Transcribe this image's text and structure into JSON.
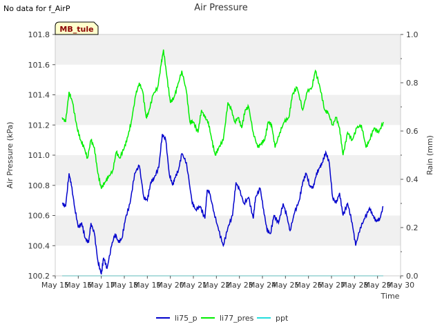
{
  "notice": "No data for f_AirP",
  "station_label": "MB_tule",
  "colors": {
    "li75_p": "#0000cc",
    "li77_pres": "#00ee00",
    "ppt": "#22dddd",
    "band": "#f0f0f0",
    "station_bg": "#ffffcc",
    "station_text": "#8b0000"
  },
  "chart_data": {
    "type": "line",
    "title": "Air Pressure",
    "xlabel": "Time",
    "ylabel": "Air Pressure (kPa)",
    "y2label": "Rain (mm)",
    "xlim": [
      15,
      30
    ],
    "ylim": [
      100.2,
      101.8
    ],
    "y2lim": [
      0.0,
      1.0
    ],
    "x_ticks": [
      15,
      16,
      17,
      18,
      19,
      20,
      21,
      22,
      23,
      24,
      25,
      26,
      27,
      28,
      29,
      30
    ],
    "x_tick_labels": [
      "May 15",
      "May 16",
      "May 17",
      "May 18",
      "May 19",
      "May 20",
      "May 21",
      "May 22",
      "May 23",
      "May 24",
      "May 25",
      "May 26",
      "May 27",
      "May 28",
      "May 29",
      "May 30"
    ],
    "y_ticks": [
      100.2,
      100.4,
      100.6,
      100.8,
      101.0,
      101.2,
      101.4,
      101.6,
      101.8
    ],
    "y_tick_labels": [
      "100.2",
      "100.4",
      "100.6",
      "100.8",
      "101.0",
      "101.2",
      "101.4",
      "101.6",
      "101.8"
    ],
    "y2_ticks": [
      0.0,
      0.2,
      0.4,
      0.6,
      0.8,
      1.0
    ],
    "y2_tick_labels": [
      "0.0",
      "0.2",
      "0.4",
      "0.6",
      "0.8",
      "1.0"
    ],
    "legend_position": "bottom-center",
    "series": [
      {
        "name": "li75_p",
        "axis": "left",
        "x": [
          15.3,
          15.45,
          15.6,
          15.7,
          15.85,
          16.0,
          16.15,
          16.3,
          16.45,
          16.55,
          16.7,
          16.85,
          17.0,
          17.1,
          17.25,
          17.45,
          17.6,
          17.75,
          17.9,
          18.05,
          18.25,
          18.45,
          18.65,
          18.85,
          19.0,
          19.15,
          19.3,
          19.5,
          19.65,
          19.8,
          19.95,
          20.1,
          20.2,
          20.35,
          20.5,
          20.7,
          20.95,
          21.1,
          21.3,
          21.5,
          21.6,
          21.7,
          21.9,
          22.1,
          22.3,
          22.5,
          22.7,
          22.85,
          23.0,
          23.2,
          23.4,
          23.6,
          23.7,
          23.9,
          24.05,
          24.2,
          24.35,
          24.5,
          24.7,
          24.9,
          25.05,
          25.2,
          25.4,
          25.6,
          25.75,
          25.9,
          26.05,
          26.2,
          26.35,
          26.5,
          26.6,
          26.75,
          26.9,
          27.05,
          27.2,
          27.35,
          27.5,
          27.7,
          27.9,
          28.05,
          28.25,
          28.45,
          28.65,
          28.8,
          28.95,
          29.1,
          29.25
        ],
        "values": [
          100.68,
          100.66,
          100.88,
          100.8,
          100.65,
          100.52,
          100.55,
          100.45,
          100.42,
          100.55,
          100.48,
          100.3,
          100.21,
          100.32,
          100.25,
          100.4,
          100.48,
          100.42,
          100.45,
          100.58,
          100.68,
          100.88,
          100.93,
          100.72,
          100.7,
          100.82,
          100.85,
          100.92,
          101.14,
          101.1,
          100.88,
          100.8,
          100.85,
          100.9,
          101.01,
          100.95,
          100.68,
          100.64,
          100.66,
          100.58,
          100.77,
          100.75,
          100.62,
          100.5,
          100.4,
          100.52,
          100.6,
          100.82,
          100.77,
          100.68,
          100.72,
          100.58,
          100.72,
          100.78,
          100.64,
          100.5,
          100.48,
          100.6,
          100.55,
          100.68,
          100.6,
          100.5,
          100.62,
          100.7,
          100.82,
          100.88,
          100.8,
          100.78,
          100.88,
          100.92,
          100.95,
          101.02,
          100.95,
          100.72,
          100.68,
          100.75,
          100.6,
          100.68,
          100.55,
          100.4,
          100.52,
          100.58,
          100.65,
          100.6,
          100.56,
          100.58,
          100.66
        ]
      },
      {
        "name": "li77_pres",
        "axis": "left",
        "x": [
          15.3,
          15.45,
          15.6,
          15.75,
          15.95,
          16.1,
          16.25,
          16.4,
          16.55,
          16.7,
          16.85,
          17.0,
          17.15,
          17.3,
          17.5,
          17.65,
          17.8,
          18.0,
          18.15,
          18.3,
          18.5,
          18.65,
          18.8,
          18.95,
          19.05,
          19.25,
          19.45,
          19.6,
          19.7,
          19.85,
          20.0,
          20.15,
          20.3,
          20.5,
          20.7,
          20.85,
          21.0,
          21.2,
          21.35,
          21.5,
          21.65,
          21.8,
          21.95,
          22.1,
          22.3,
          22.5,
          22.65,
          22.8,
          22.95,
          23.1,
          23.25,
          23.4,
          23.6,
          23.8,
          23.95,
          24.1,
          24.25,
          24.4,
          24.55,
          24.75,
          24.95,
          25.15,
          25.3,
          25.5,
          25.75,
          25.95,
          26.15,
          26.3,
          26.5,
          26.7,
          26.85,
          27.05,
          27.2,
          27.35,
          27.5,
          27.7,
          27.9,
          28.1,
          28.3,
          28.5,
          28.65,
          28.85,
          29.05,
          29.25
        ],
        "values": [
          101.25,
          101.22,
          101.42,
          101.35,
          101.18,
          101.1,
          101.05,
          100.98,
          101.1,
          101.05,
          100.88,
          100.78,
          100.82,
          100.85,
          100.9,
          101.02,
          100.98,
          101.05,
          101.12,
          101.22,
          101.4,
          101.48,
          101.42,
          101.25,
          101.28,
          101.4,
          101.45,
          101.6,
          101.7,
          101.52,
          101.35,
          101.38,
          101.45,
          101.56,
          101.42,
          101.22,
          101.22,
          101.15,
          101.3,
          101.25,
          101.22,
          101.1,
          101.0,
          101.05,
          101.1,
          101.35,
          101.3,
          101.22,
          101.25,
          101.18,
          101.3,
          101.32,
          101.15,
          101.05,
          101.08,
          101.1,
          101.22,
          101.2,
          101.05,
          101.15,
          101.22,
          101.25,
          101.4,
          101.45,
          101.3,
          101.42,
          101.45,
          101.56,
          101.45,
          101.3,
          101.28,
          101.2,
          101.25,
          101.18,
          101.0,
          101.15,
          101.1,
          101.18,
          101.2,
          101.05,
          101.1,
          101.18,
          101.15,
          101.22
        ]
      },
      {
        "name": "ppt",
        "axis": "right",
        "x": [
          15.3,
          29.25
        ],
        "values": [
          0.0,
          0.0
        ]
      }
    ]
  }
}
